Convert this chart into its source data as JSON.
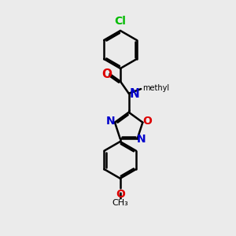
{
  "bg_color": "#ebebeb",
  "bond_color": "#000000",
  "bond_width": 1.8,
  "cl_color": "#00bb00",
  "o_color": "#dd0000",
  "n_color": "#0000cc",
  "figsize": [
    3.0,
    3.0
  ],
  "dpi": 100,
  "xlim": [
    0,
    10
  ],
  "ylim": [
    0,
    10
  ]
}
